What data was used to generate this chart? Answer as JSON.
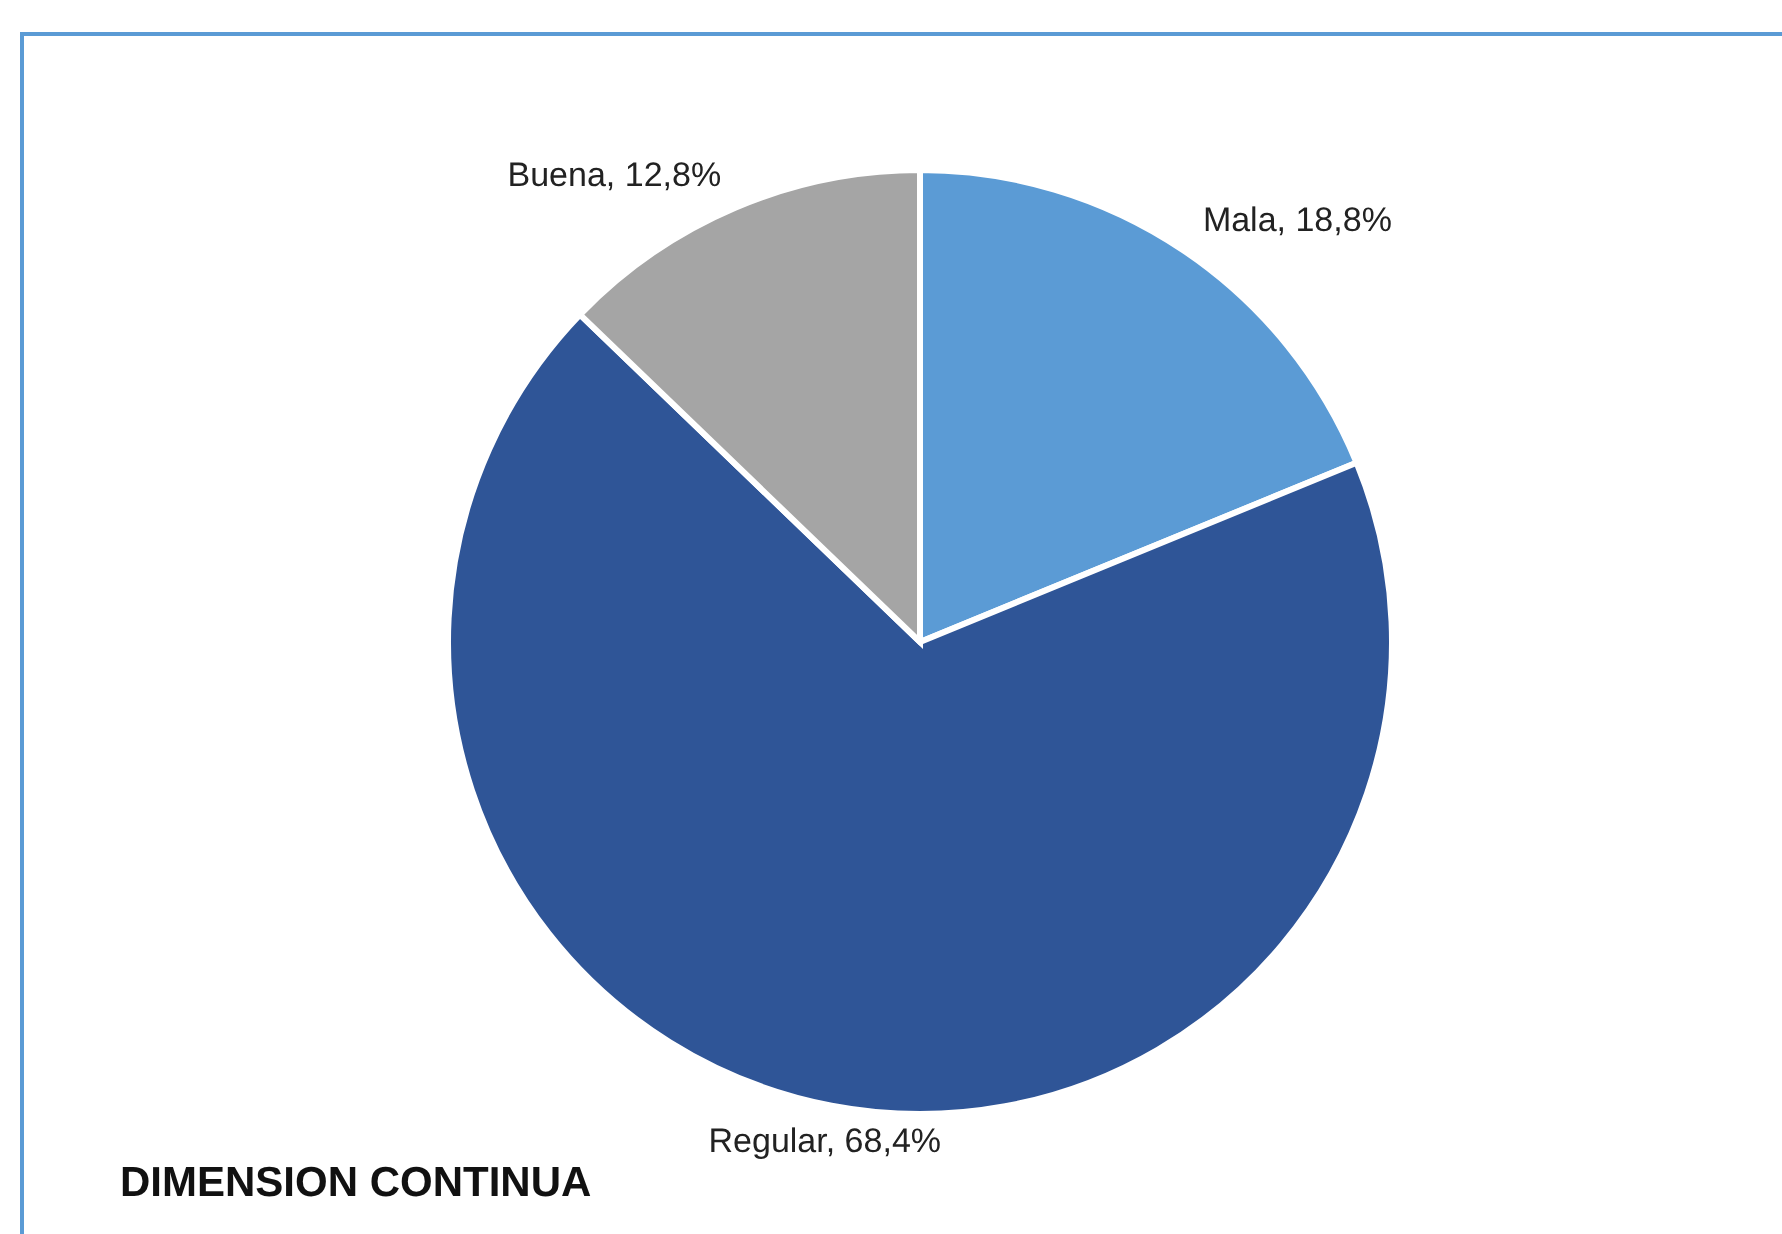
{
  "chart_data": {
    "type": "pie",
    "title": "DIMENSION CONTINUA",
    "categories": [
      "Mala",
      "Regular",
      "Buena"
    ],
    "values": [
      18.8,
      68.4,
      12.8
    ],
    "colors": [
      "#5b9bd5",
      "#2f5597",
      "#a5a5a5"
    ],
    "value_labels": [
      "18,8%",
      "68,4%",
      "12,8%"
    ],
    "legend": false
  }
}
